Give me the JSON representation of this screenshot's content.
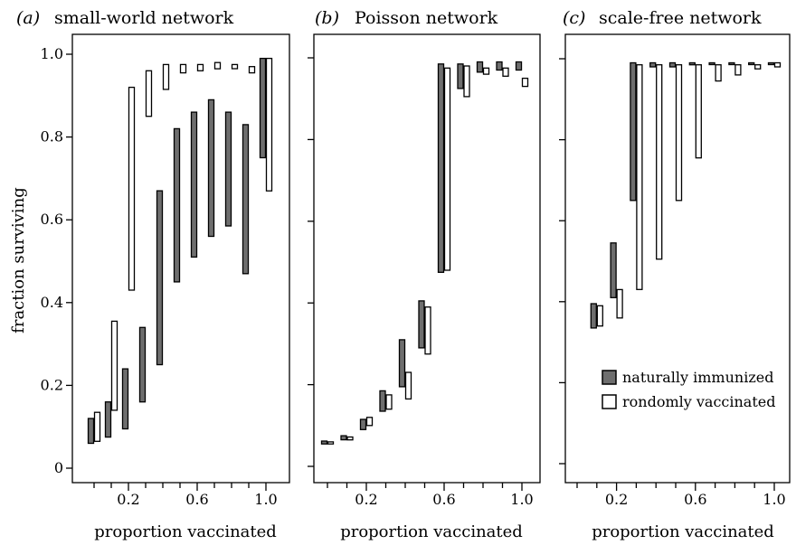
{
  "colors": {
    "natural": "#6e6e6e",
    "random": "#ffffff",
    "stroke": "#000000"
  },
  "chart_data": [
    {
      "type": "floating-bar",
      "panel_tag": "(a)",
      "title": "small-world network",
      "xlabel": "proportion vaccinated",
      "ylabel": "fraction surviving",
      "xlim": [
        0,
        1.05
      ],
      "ylim": [
        0,
        1.0
      ],
      "xticks": [
        0.2,
        0.6,
        1.0
      ],
      "xtick_labels": [
        "0.2",
        "0.6",
        "1.0"
      ],
      "yticks": [
        0,
        0.2,
        0.4,
        0.6,
        0.8,
        1.0
      ],
      "ytick_labels": [
        "0",
        "0.2",
        "0.4",
        "0.6",
        "0.8",
        "1.0"
      ],
      "series": [
        {
          "name": "naturally immunized",
          "key": "natural",
          "x": [
            0.0,
            0.1,
            0.2,
            0.3,
            0.4,
            0.5,
            0.6,
            0.7,
            0.8,
            0.9,
            1.0
          ],
          "low": [
            0.06,
            0.075,
            0.095,
            0.16,
            0.25,
            0.45,
            0.51,
            0.56,
            0.585,
            0.47,
            0.75
          ],
          "high": [
            0.12,
            0.16,
            0.24,
            0.34,
            0.67,
            0.82,
            0.86,
            0.89,
            0.86,
            0.83,
            0.99
          ]
        },
        {
          "name": "rondomly vaccinated",
          "key": "random",
          "x": [
            0.0,
            0.1,
            0.2,
            0.3,
            0.4,
            0.5,
            0.6,
            0.7,
            0.8,
            0.9,
            1.0
          ],
          "low": [
            0.065,
            0.14,
            0.43,
            0.85,
            0.915,
            0.955,
            0.96,
            0.965,
            0.965,
            0.955,
            0.67
          ],
          "high": [
            0.135,
            0.355,
            0.92,
            0.96,
            0.975,
            0.975,
            0.975,
            0.98,
            0.975,
            0.97,
            0.99
          ]
        }
      ]
    },
    {
      "type": "floating-bar",
      "panel_tag": "(b)",
      "title": "Poisson network",
      "xlabel": "proportion vaccinated",
      "ylabel": "",
      "xlim": [
        0,
        1.05
      ],
      "ylim": [
        0,
        1.0
      ],
      "xticks": [
        0.2,
        0.6,
        1.0
      ],
      "xtick_labels": [
        "0.2",
        "0.6",
        "1.0"
      ],
      "yticks": [
        0,
        0.2,
        0.4,
        0.6,
        0.8,
        1.0
      ],
      "ytick_labels": [],
      "series": [
        {
          "name": "naturally immunized",
          "key": "natural",
          "x": [
            0.0,
            0.1,
            0.2,
            0.3,
            0.4,
            0.5,
            0.6,
            0.7,
            0.8,
            0.9,
            1.0
          ],
          "low": [
            0.055,
            0.065,
            0.09,
            0.135,
            0.195,
            0.29,
            0.475,
            0.925,
            0.965,
            0.97,
            0.97
          ],
          "high": [
            0.062,
            0.075,
            0.115,
            0.185,
            0.31,
            0.405,
            0.985,
            0.985,
            0.99,
            0.99,
            0.99
          ]
        },
        {
          "name": "rondomly vaccinated",
          "key": "random",
          "x": [
            0.0,
            0.1,
            0.2,
            0.3,
            0.4,
            0.5,
            0.6,
            0.7,
            0.8,
            0.9,
            1.0
          ],
          "low": [
            0.055,
            0.065,
            0.1,
            0.14,
            0.165,
            0.275,
            0.48,
            0.905,
            0.96,
            0.955,
            0.93
          ],
          "high": [
            0.06,
            0.072,
            0.12,
            0.175,
            0.23,
            0.39,
            0.975,
            0.98,
            0.975,
            0.975,
            0.95
          ]
        }
      ]
    },
    {
      "type": "floating-bar",
      "panel_tag": "(c)",
      "title": "scale-free network",
      "xlabel": "proportion vaccinated",
      "ylabel": "",
      "xlim": [
        0,
        1.05
      ],
      "ylim": [
        0,
        1.0
      ],
      "xticks": [
        0.2,
        0.6,
        1.0
      ],
      "xtick_labels": [
        "0.2",
        "0.6",
        "1.0"
      ],
      "yticks": [
        0,
        0.2,
        0.4,
        0.6,
        0.8,
        1.0
      ],
      "ytick_labels": [],
      "legend": {
        "placement": "center-right",
        "entries": [
          "naturally immunized",
          "rondomly vaccinated"
        ]
      },
      "series": [
        {
          "name": "naturally immunized",
          "key": "natural",
          "x": [
            0.1,
            0.2,
            0.3,
            0.4,
            0.5,
            0.6,
            0.7,
            0.8,
            0.9,
            1.0
          ],
          "low": [
            0.335,
            0.41,
            0.65,
            0.98,
            0.98,
            0.985,
            0.99,
            0.99,
            0.99,
            0.99
          ],
          "high": [
            0.395,
            0.545,
            0.99,
            0.99,
            0.99,
            0.99,
            0.99,
            0.99,
            0.99,
            0.99
          ]
        },
        {
          "name": "rondomly vaccinated",
          "key": "random",
          "x": [
            0.1,
            0.2,
            0.3,
            0.4,
            0.5,
            0.6,
            0.7,
            0.8,
            0.9,
            1.0
          ],
          "low": [
            0.34,
            0.36,
            0.43,
            0.505,
            0.65,
            0.755,
            0.945,
            0.96,
            0.975,
            0.98
          ],
          "high": [
            0.39,
            0.43,
            0.985,
            0.985,
            0.985,
            0.985,
            0.985,
            0.985,
            0.985,
            0.99
          ]
        }
      ]
    }
  ]
}
